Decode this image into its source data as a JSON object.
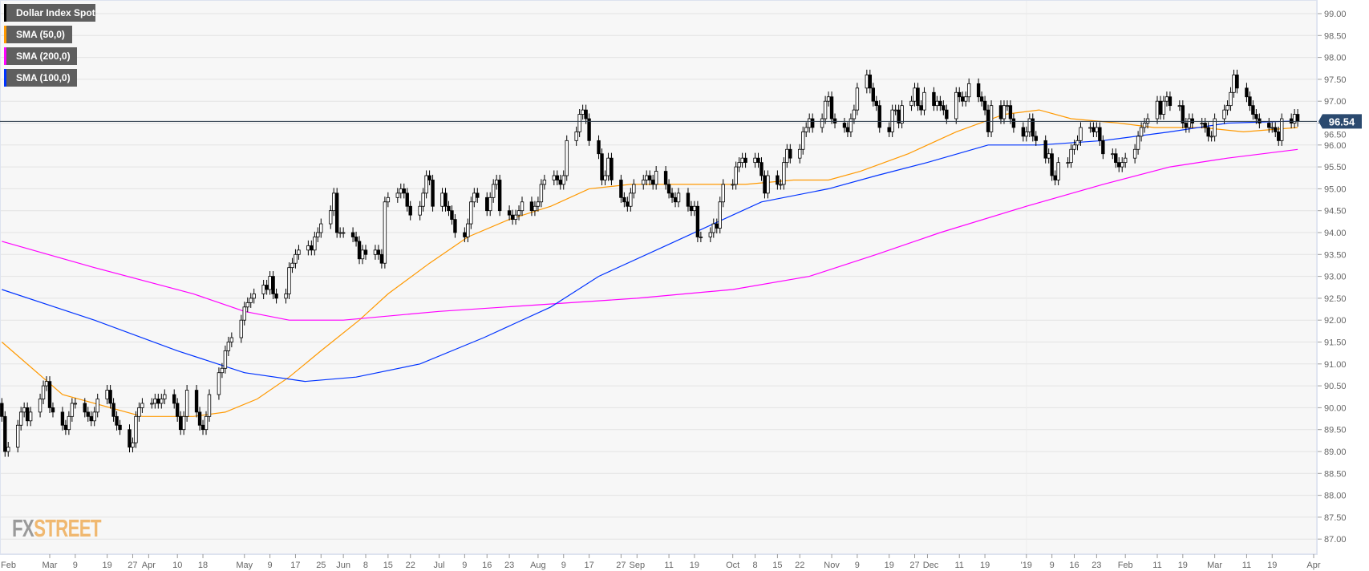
{
  "chart_data": {
    "type": "candlestick",
    "title": "",
    "legend": [
      "Dollar Index Spot",
      "SMA (50,0)",
      "SMA (200,0)",
      "SMA (100,0)"
    ],
    "legend_placement": "top-left",
    "colors": {
      "price": "#000000",
      "sma50": "#ff9900",
      "sma200": "#ff00ff",
      "sma100": "#0033ff",
      "last_price_label": "#2b4a6f"
    },
    "ylim": [
      86.7,
      99.3
    ],
    "y_ticks": [
      "99.00",
      "98.50",
      "98.00",
      "97.50",
      "97.00",
      "96.50",
      "96.00",
      "95.50",
      "95.00",
      "94.50",
      "94.00",
      "93.50",
      "93.00",
      "92.50",
      "92.00",
      "91.50",
      "91.00",
      "90.50",
      "90.00",
      "89.50",
      "89.00",
      "88.50",
      "88.00",
      "87.50",
      "87.00"
    ],
    "x_ticks": [
      [
        "2018-02-01",
        "Feb"
      ],
      [
        "2018-03-01",
        "Mar"
      ],
      [
        "2018-03-09",
        "9"
      ],
      [
        "2018-03-19",
        "19"
      ],
      [
        "2018-03-27",
        "27"
      ],
      [
        "2018-04-01",
        "Apr"
      ],
      [
        "2018-04-10",
        "10"
      ],
      [
        "2018-04-18",
        "18"
      ],
      [
        "2018-05-01",
        "May"
      ],
      [
        "2018-05-09",
        "9"
      ],
      [
        "2018-05-17",
        "17"
      ],
      [
        "2018-05-25",
        "25"
      ],
      [
        "2018-06-01",
        "Jun"
      ],
      [
        "2018-06-08",
        "8"
      ],
      [
        "2018-06-15",
        "15"
      ],
      [
        "2018-06-22",
        "22"
      ],
      [
        "2018-07-01",
        "Jul"
      ],
      [
        "2018-07-09",
        "9"
      ],
      [
        "2018-07-16",
        "16"
      ],
      [
        "2018-07-23",
        "23"
      ],
      [
        "2018-08-01",
        "Aug"
      ],
      [
        "2018-08-09",
        "9"
      ],
      [
        "2018-08-17",
        "17"
      ],
      [
        "2018-08-27",
        "27"
      ],
      [
        "2018-09-01",
        "Sep"
      ],
      [
        "2018-09-11",
        "11"
      ],
      [
        "2018-09-19",
        "19"
      ],
      [
        "2018-10-01",
        "Oct"
      ],
      [
        "2018-10-08",
        "8"
      ],
      [
        "2018-10-15",
        "15"
      ],
      [
        "2018-10-22",
        "22"
      ],
      [
        "2018-11-01",
        "Nov"
      ],
      [
        "2018-11-09",
        "9"
      ],
      [
        "2018-11-19",
        "19"
      ],
      [
        "2018-11-27",
        "27"
      ],
      [
        "2018-12-01",
        "Dec"
      ],
      [
        "2018-12-11",
        "11"
      ],
      [
        "2018-12-19",
        "19"
      ],
      [
        "2019-01-01",
        "'19"
      ],
      [
        "2019-01-09",
        "9"
      ],
      [
        "2019-01-16",
        "16"
      ],
      [
        "2019-01-23",
        "23"
      ],
      [
        "2019-02-01",
        "Feb"
      ],
      [
        "2019-02-11",
        "11"
      ],
      [
        "2019-02-19",
        "19"
      ],
      [
        "2019-03-01",
        "Mar"
      ],
      [
        "2019-03-11",
        "11"
      ],
      [
        "2019-03-19",
        "19"
      ],
      [
        "2019-04-01",
        "Apr"
      ]
    ],
    "last_price": 96.54,
    "last_price_label": "96.54",
    "candles_first_date": "2018-02-14",
    "candle_closes": [
      89.8,
      89.0,
      89.1,
      89.6,
      89.9,
      90.0,
      89.7,
      89.9,
      90.2,
      90.5,
      90.6,
      90.0,
      89.9,
      89.6,
      89.5,
      89.8,
      90.1,
      90.1,
      89.9,
      89.8,
      89.7,
      89.9,
      90.2,
      90.4,
      90.1,
      89.8,
      89.6,
      89.5,
      89.1,
      89.2,
      89.8,
      90.0,
      90.1,
      90.1,
      90.2,
      90.1,
      90.2,
      90.3,
      90.1,
      89.8,
      89.5,
      89.8,
      90.4,
      89.9,
      89.6,
      89.5,
      89.8,
      90.3,
      90.8,
      90.9,
      91.3,
      91.5,
      91.6,
      92.0,
      92.3,
      92.4,
      92.5,
      92.6,
      92.8,
      92.7,
      93.0,
      92.6,
      92.5,
      92.6,
      93.2,
      93.3,
      93.5,
      93.6,
      93.7,
      93.6,
      93.9,
      94.0,
      94.2,
      94.5,
      94.9,
      94.0,
      94.0,
      94.0,
      93.9,
      93.8,
      93.4,
      93.6,
      93.5,
      93.6,
      93.5,
      93.3,
      94.7,
      94.8,
      94.9,
      95.0,
      94.9,
      94.6,
      94.4,
      94.6,
      94.9,
      95.3,
      95.2,
      94.6,
      94.9,
      94.6,
      94.5,
      94.3,
      94.0,
      93.9,
      94.2,
      94.7,
      94.9,
      94.8,
      94.5,
      94.8,
      95.1,
      95.2,
      94.5,
      94.4,
      94.3,
      94.4,
      94.5,
      94.7,
      94.5,
      94.6,
      94.7,
      95.1,
      95.2,
      95.3,
      95.2,
      95.1,
      95.3,
      96.1,
      96.3,
      96.7,
      96.8,
      96.6,
      96.1,
      95.8,
      95.2,
      95.3,
      95.7,
      95.2,
      94.8,
      94.7,
      94.6,
      94.9,
      95.1,
      95.2,
      95.3,
      95.2,
      95.1,
      95.4,
      95.1,
      94.9,
      94.8,
      94.7,
      94.9,
      94.6,
      94.5,
      94.6,
      93.9,
      93.9,
      94.0,
      94.2,
      94.1,
      94.7,
      95.1,
      95.1,
      95.5,
      95.6,
      95.7,
      95.6,
      95.7,
      95.6,
      95.3,
      94.9,
      95.3,
      95.1,
      95.1,
      95.6,
      95.9,
      95.7,
      95.9,
      96.3,
      96.4,
      96.6,
      96.4,
      96.6,
      97.0,
      97.1,
      96.6,
      96.5,
      96.4,
      96.3,
      96.6,
      96.8,
      97.3,
      97.6,
      97.3,
      97.0,
      96.9,
      96.4,
      96.3,
      96.8,
      96.8,
      96.5,
      96.9,
      97.0,
      97.3,
      96.9,
      96.8,
      97.2,
      96.9,
      97.0,
      96.9,
      96.8,
      96.6,
      97.2,
      97.1,
      97.0,
      97.1,
      97.4,
      97.1,
      97.0,
      96.8,
      96.3,
      96.9,
      96.6,
      96.9,
      96.9,
      96.6,
      96.4,
      96.2,
      96.3,
      96.6,
      96.2,
      96.1,
      95.7,
      95.8,
      95.3,
      95.2,
      95.6,
      95.6,
      95.9,
      96.0,
      96.1,
      96.4,
      96.4,
      96.3,
      96.4,
      96.1,
      95.8,
      95.8,
      95.6,
      95.5,
      95.6,
      95.7,
      95.9,
      96.2,
      96.4,
      96.5,
      96.6,
      97.0,
      96.7,
      97.0,
      97.1,
      96.9,
      96.9,
      96.5,
      96.4,
      96.6,
      96.5,
      96.5,
      96.4,
      96.2,
      96.2,
      96.6,
      96.8,
      96.9,
      97.2,
      97.6,
      97.3,
      97.1,
      96.9,
      96.7,
      96.6,
      96.5,
      96.4,
      96.4,
      96.3,
      96.1,
      96.6,
      96.5,
      96.7,
      96.54
    ],
    "series": [
      {
        "name": "SMA (50,0)",
        "key": "sma50",
        "points": [
          [
            "2018-02-14",
            91.5
          ],
          [
            "2018-03-05",
            90.3
          ],
          [
            "2018-03-20",
            90.0
          ],
          [
            "2018-03-30",
            89.8
          ],
          [
            "2018-04-15",
            89.8
          ],
          [
            "2018-04-25",
            89.9
          ],
          [
            "2018-05-05",
            90.2
          ],
          [
            "2018-05-15",
            90.7
          ],
          [
            "2018-05-25",
            91.3
          ],
          [
            "2018-06-06",
            92.0
          ],
          [
            "2018-06-15",
            92.6
          ],
          [
            "2018-06-28",
            93.3
          ],
          [
            "2018-07-10",
            93.9
          ],
          [
            "2018-07-23",
            94.3
          ],
          [
            "2018-08-05",
            94.6
          ],
          [
            "2018-08-17",
            95.0
          ],
          [
            "2018-08-30",
            95.1
          ],
          [
            "2018-09-15",
            95.1
          ],
          [
            "2018-10-05",
            95.1
          ],
          [
            "2018-10-20",
            95.2
          ],
          [
            "2018-10-31",
            95.2
          ],
          [
            "2018-11-10",
            95.4
          ],
          [
            "2018-11-25",
            95.8
          ],
          [
            "2018-12-10",
            96.3
          ],
          [
            "2018-12-25",
            96.7
          ],
          [
            "2019-01-05",
            96.8
          ],
          [
            "2019-01-15",
            96.6
          ],
          [
            "2019-01-30",
            96.5
          ],
          [
            "2019-02-10",
            96.4
          ],
          [
            "2019-02-25",
            96.4
          ],
          [
            "2019-03-10",
            96.3
          ],
          [
            "2019-03-27",
            96.4
          ]
        ]
      },
      {
        "name": "SMA (200,0)",
        "key": "sma200",
        "points": [
          [
            "2018-02-14",
            93.8
          ],
          [
            "2018-03-15",
            93.2
          ],
          [
            "2018-04-15",
            92.6
          ],
          [
            "2018-05-01",
            92.2
          ],
          [
            "2018-05-15",
            92.0
          ],
          [
            "2018-06-01",
            92.0
          ],
          [
            "2018-07-01",
            92.2
          ],
          [
            "2018-08-01",
            92.35
          ],
          [
            "2018-09-01",
            92.5
          ],
          [
            "2018-10-01",
            92.7
          ],
          [
            "2018-10-25",
            93.0
          ],
          [
            "2018-11-15",
            93.5
          ],
          [
            "2018-12-05",
            94.0
          ],
          [
            "2019-01-01",
            94.6
          ],
          [
            "2019-01-25",
            95.1
          ],
          [
            "2019-02-15",
            95.5
          ],
          [
            "2019-03-05",
            95.7
          ],
          [
            "2019-03-27",
            95.9
          ]
        ]
      },
      {
        "name": "SMA (100,0)",
        "key": "sma100",
        "points": [
          [
            "2018-02-14",
            92.7
          ],
          [
            "2018-03-15",
            92.0
          ],
          [
            "2018-04-10",
            91.3
          ],
          [
            "2018-05-01",
            90.8
          ],
          [
            "2018-05-20",
            90.6
          ],
          [
            "2018-06-05",
            90.7
          ],
          [
            "2018-06-25",
            91.0
          ],
          [
            "2018-07-15",
            91.6
          ],
          [
            "2018-08-05",
            92.3
          ],
          [
            "2018-08-20",
            93.0
          ],
          [
            "2018-09-10",
            93.7
          ],
          [
            "2018-09-25",
            94.2
          ],
          [
            "2018-10-10",
            94.7
          ],
          [
            "2018-10-31",
            95.0
          ],
          [
            "2018-11-15",
            95.3
          ],
          [
            "2018-12-01",
            95.6
          ],
          [
            "2018-12-20",
            96.0
          ],
          [
            "2019-01-05",
            96.0
          ],
          [
            "2019-01-25",
            96.1
          ],
          [
            "2019-02-15",
            96.3
          ],
          [
            "2019-03-05",
            96.5
          ],
          [
            "2019-03-27",
            96.55
          ]
        ]
      }
    ]
  },
  "legend": {
    "price": "Dollar Index Spot",
    "sma50": "SMA (50,0)",
    "sma200": "SMA (200,0)",
    "sma100": "SMA (100,0)"
  },
  "logo": {
    "fx": "FX",
    "street": "STREET"
  }
}
